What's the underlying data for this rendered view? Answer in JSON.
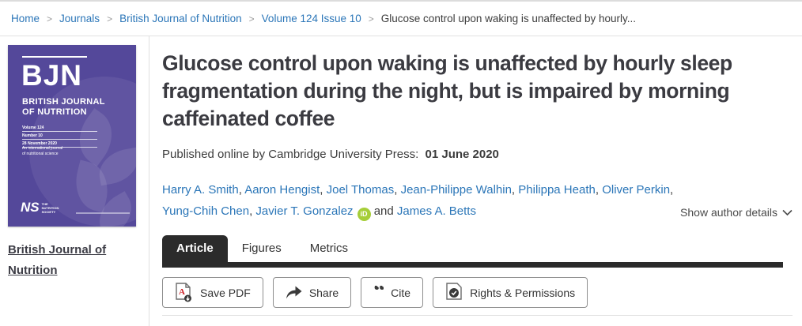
{
  "breadcrumb": {
    "separator": ">",
    "items": [
      {
        "label": "Home"
      },
      {
        "label": "Journals"
      },
      {
        "label": "British Journal of Nutrition"
      },
      {
        "label": "Volume 124 Issue 10"
      },
      {
        "label": "Glucose control upon waking is unaffected by hourly..."
      }
    ]
  },
  "sidebar": {
    "cover": {
      "abbrev": "BJN",
      "name_line1": "BRITISH JOURNAL",
      "name_line2": "OF NUTRITION",
      "meta_lines": [
        "Volume 124",
        "Number 10",
        "28 November 2020"
      ],
      "tagline_line1": "An international journal",
      "tagline_line2": "of nutritional science",
      "society_abbrev": "NS",
      "society_name": "THE NUTRITION SOCIETY"
    },
    "journal_link": "British Journal of Nutrition"
  },
  "article": {
    "title": "Glucose control upon waking is unaffected by hourly sleep fragmentation during the night, but is impaired by morning caffeinated coffee",
    "published_prefix": "Published online by Cambridge University Press:",
    "published_date": "01 June 2020",
    "authors": [
      "Harry A. Smith",
      "Aaron Hengist",
      "Joel Thomas",
      "Jean-Philippe Walhin",
      "Philippa Heath",
      "Oliver Perkin",
      "Yung-Chih Chen",
      "Javier T. Gonzalez",
      "James A. Betts"
    ],
    "orcid_author": "Javier T. Gonzalez",
    "orcid_badge": "iD",
    "conjunction": "and",
    "show_author_details": "Show author details"
  },
  "tabs": [
    {
      "label": "Article",
      "active": true
    },
    {
      "label": "Figures",
      "active": false
    },
    {
      "label": "Metrics",
      "active": false
    }
  ],
  "actions": {
    "save_pdf": "Save PDF",
    "share": "Share",
    "cite": "Cite",
    "rights": "Rights & Permissions"
  },
  "colors": {
    "link_blue": "#2b76b8",
    "cover_purple": "#54489a",
    "tab_dark": "#2b2b2b",
    "orcid_green": "#a6ce39",
    "pdf_red": "#cc2127"
  }
}
